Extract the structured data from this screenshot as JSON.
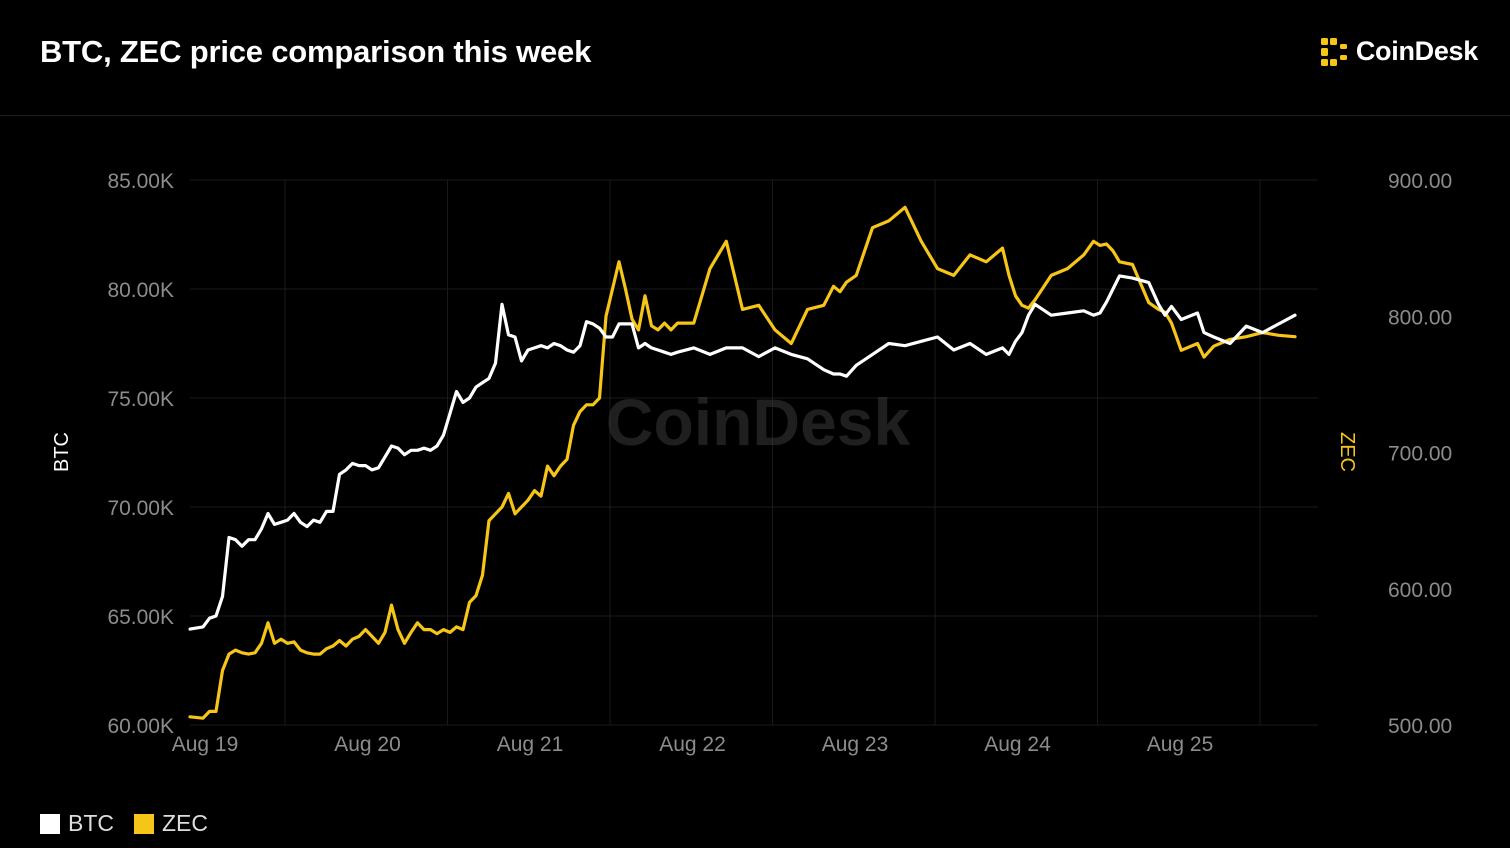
{
  "header": {
    "title": "BTC, ZEC price comparison this week",
    "brand": "CoinDesk"
  },
  "colors": {
    "background": "#000000",
    "btc": "#ffffff",
    "zec": "#f6c518",
    "grid": "#1a1a1a",
    "tick": "#8c8c8c"
  },
  "chart_data": {
    "type": "line",
    "watermark": "CoinDesk",
    "x_ticks": [
      "Aug 19",
      "Aug 20",
      "Aug 21",
      "Aug 22",
      "Aug 23",
      "Aug 24",
      "Aug 25"
    ],
    "y_left": {
      "label": "BTC",
      "ticks": [
        "60.00K",
        "65.00K",
        "70.00K",
        "75.00K",
        "80.00K",
        "85.00K"
      ],
      "range": [
        60000,
        85000
      ]
    },
    "y_right": {
      "label": "ZEC",
      "ticks": [
        "500.00",
        "600.00",
        "700.00",
        "800.00",
        "900.00"
      ],
      "range": [
        500,
        900
      ]
    },
    "x_range": [
      0,
      6.85
    ],
    "series": [
      {
        "name": "BTC",
        "axis": "left",
        "x": [
          0,
          0.08,
          0.12,
          0.16,
          0.2,
          0.24,
          0.28,
          0.32,
          0.36,
          0.4,
          0.44,
          0.48,
          0.52,
          0.56,
          0.6,
          0.64,
          0.68,
          0.72,
          0.76,
          0.8,
          0.84,
          0.88,
          0.92,
          0.96,
          1.0,
          1.04,
          1.08,
          1.12,
          1.16,
          1.2,
          1.24,
          1.28,
          1.32,
          1.36,
          1.4,
          1.44,
          1.48,
          1.52,
          1.56,
          1.6,
          1.64,
          1.68,
          1.72,
          1.76,
          1.8,
          1.84,
          1.88,
          1.92,
          1.96,
          2.0,
          2.04,
          2.08,
          2.12,
          2.16,
          2.2,
          2.24,
          2.28,
          2.32,
          2.36,
          2.4,
          2.44,
          2.48,
          2.52,
          2.56,
          2.6,
          2.64,
          2.68,
          2.72,
          2.76,
          2.8,
          2.84,
          2.88,
          2.92,
          2.96,
          3.0,
          3.1,
          3.2,
          3.3,
          3.4,
          3.5,
          3.6,
          3.7,
          3.8,
          3.9,
          3.96,
          4.0,
          4.04,
          4.1,
          4.2,
          4.3,
          4.4,
          4.5,
          4.6,
          4.7,
          4.8,
          4.9,
          5.0,
          5.04,
          5.08,
          5.12,
          5.16,
          5.2,
          5.3,
          5.4,
          5.5,
          5.56,
          5.6,
          5.64,
          5.68,
          5.72,
          5.8,
          5.9,
          5.96,
          6.0,
          6.04,
          6.1,
          6.2,
          6.24,
          6.3,
          6.4,
          6.5,
          6.6,
          6.7,
          6.8
        ],
        "y": [
          64400,
          64500,
          64900,
          65000,
          65900,
          68600,
          68500,
          68200,
          68500,
          68500,
          69000,
          69700,
          69200,
          69300,
          69400,
          69700,
          69300,
          69100,
          69400,
          69300,
          69800,
          69800,
          71500,
          71700,
          72000,
          71900,
          71900,
          71700,
          71800,
          72300,
          72800,
          72700,
          72400,
          72600,
          72600,
          72700,
          72600,
          72800,
          73300,
          74300,
          75300,
          74800,
          75000,
          75500,
          75700,
          75900,
          76600,
          79300,
          77900,
          77800,
          76700,
          77200,
          77300,
          77400,
          77300,
          77500,
          77400,
          77200,
          77100,
          77400,
          78500,
          78400,
          78200,
          77800,
          77800,
          78400,
          78400,
          78400,
          77300,
          77500,
          77300,
          77200,
          77100,
          77000,
          77100,
          77300,
          77000,
          77300,
          77300,
          76900,
          77300,
          77000,
          76800,
          76300,
          76100,
          76100,
          76000,
          76500,
          77000,
          77500,
          77400,
          77600,
          77800,
          77200,
          77500,
          77000,
          77300,
          77000,
          77600,
          78000,
          78800,
          79300,
          78800,
          78900,
          79000,
          78800,
          78900,
          79400,
          80000,
          80600,
          80500,
          80300,
          79300,
          78800,
          79200,
          78600,
          78900,
          78000,
          77800,
          77500,
          78300,
          78000,
          78400,
          78800
        ],
        "color": "#ffffff"
      },
      {
        "name": "ZEC",
        "axis": "right",
        "x": [
          0,
          0.08,
          0.12,
          0.16,
          0.2,
          0.24,
          0.28,
          0.32,
          0.36,
          0.4,
          0.44,
          0.48,
          0.52,
          0.56,
          0.6,
          0.64,
          0.68,
          0.72,
          0.76,
          0.8,
          0.84,
          0.88,
          0.92,
          0.96,
          1.0,
          1.04,
          1.08,
          1.12,
          1.16,
          1.2,
          1.24,
          1.28,
          1.32,
          1.36,
          1.4,
          1.44,
          1.48,
          1.52,
          1.56,
          1.6,
          1.64,
          1.68,
          1.72,
          1.76,
          1.8,
          1.84,
          1.88,
          1.92,
          1.96,
          2.0,
          2.04,
          2.08,
          2.12,
          2.16,
          2.2,
          2.24,
          2.28,
          2.32,
          2.36,
          2.4,
          2.44,
          2.48,
          2.52,
          2.56,
          2.6,
          2.64,
          2.68,
          2.72,
          2.76,
          2.8,
          2.84,
          2.88,
          2.92,
          2.96,
          3.0,
          3.1,
          3.2,
          3.3,
          3.4,
          3.5,
          3.6,
          3.7,
          3.8,
          3.9,
          3.96,
          4.0,
          4.04,
          4.1,
          4.2,
          4.3,
          4.4,
          4.5,
          4.6,
          4.7,
          4.8,
          4.9,
          5.0,
          5.04,
          5.08,
          5.12,
          5.16,
          5.2,
          5.3,
          5.4,
          5.5,
          5.56,
          5.6,
          5.64,
          5.68,
          5.72,
          5.8,
          5.9,
          5.96,
          6.0,
          6.04,
          6.1,
          6.2,
          6.24,
          6.3,
          6.4,
          6.5,
          6.6,
          6.7,
          6.8
        ],
        "y": [
          506,
          505,
          510,
          510,
          540,
          552,
          555,
          553,
          552,
          553,
          560,
          575,
          560,
          563,
          560,
          561,
          555,
          553,
          552,
          552,
          556,
          558,
          562,
          558,
          563,
          565,
          570,
          565,
          560,
          568,
          588,
          570,
          560,
          568,
          575,
          570,
          570,
          567,
          570,
          568,
          572,
          570,
          590,
          595,
          610,
          650,
          655,
          660,
          670,
          655,
          660,
          665,
          672,
          668,
          690,
          683,
          690,
          695,
          720,
          730,
          735,
          735,
          740,
          800,
          820,
          840,
          820,
          798,
          790,
          815,
          793,
          790,
          795,
          790,
          795,
          795,
          835,
          855,
          805,
          808,
          790,
          780,
          805,
          808,
          822,
          818,
          825,
          830,
          865,
          870,
          880,
          855,
          835,
          830,
          845,
          840,
          850,
          830,
          815,
          808,
          806,
          812,
          830,
          835,
          845,
          855,
          852,
          853,
          848,
          840,
          838,
          810,
          805,
          803,
          795,
          775,
          780,
          770,
          778,
          783,
          785,
          788,
          786,
          785
        ],
        "color": "#f6c518"
      }
    ],
    "legend": [
      "BTC",
      "ZEC"
    ],
    "legend_position": "bottom-left",
    "grid": true
  }
}
